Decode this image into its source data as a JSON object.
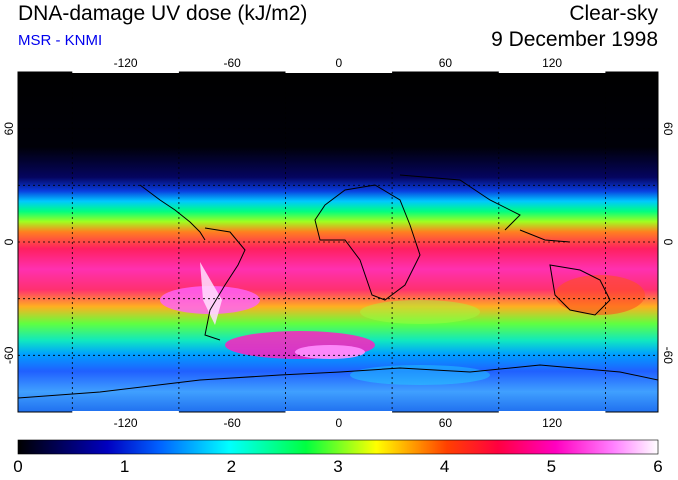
{
  "header": {
    "title": "DNA-damage UV dose (kJ/m2)",
    "source": "MSR - KNMI",
    "condition": "Clear-sky",
    "date": "9 December 1998"
  },
  "colors": {
    "source_text": "#0000ee"
  },
  "map": {
    "lon_ticks": [
      "-120",
      "-60",
      "0",
      "60",
      "120"
    ],
    "lat_ticks": [
      "60",
      "0",
      "-60"
    ],
    "lon_range": [
      -180,
      180
    ],
    "lat_range": [
      -90,
      90
    ]
  },
  "colorbar": {
    "labels": [
      "0",
      "1",
      "2",
      "3",
      "4",
      "5",
      "6"
    ],
    "min": 0,
    "max": 6,
    "stops": [
      "#000000",
      "#0000ff",
      "#00ffff",
      "#00ff00",
      "#ffff00",
      "#ff0000",
      "#ff00ff",
      "#ffffff"
    ]
  }
}
